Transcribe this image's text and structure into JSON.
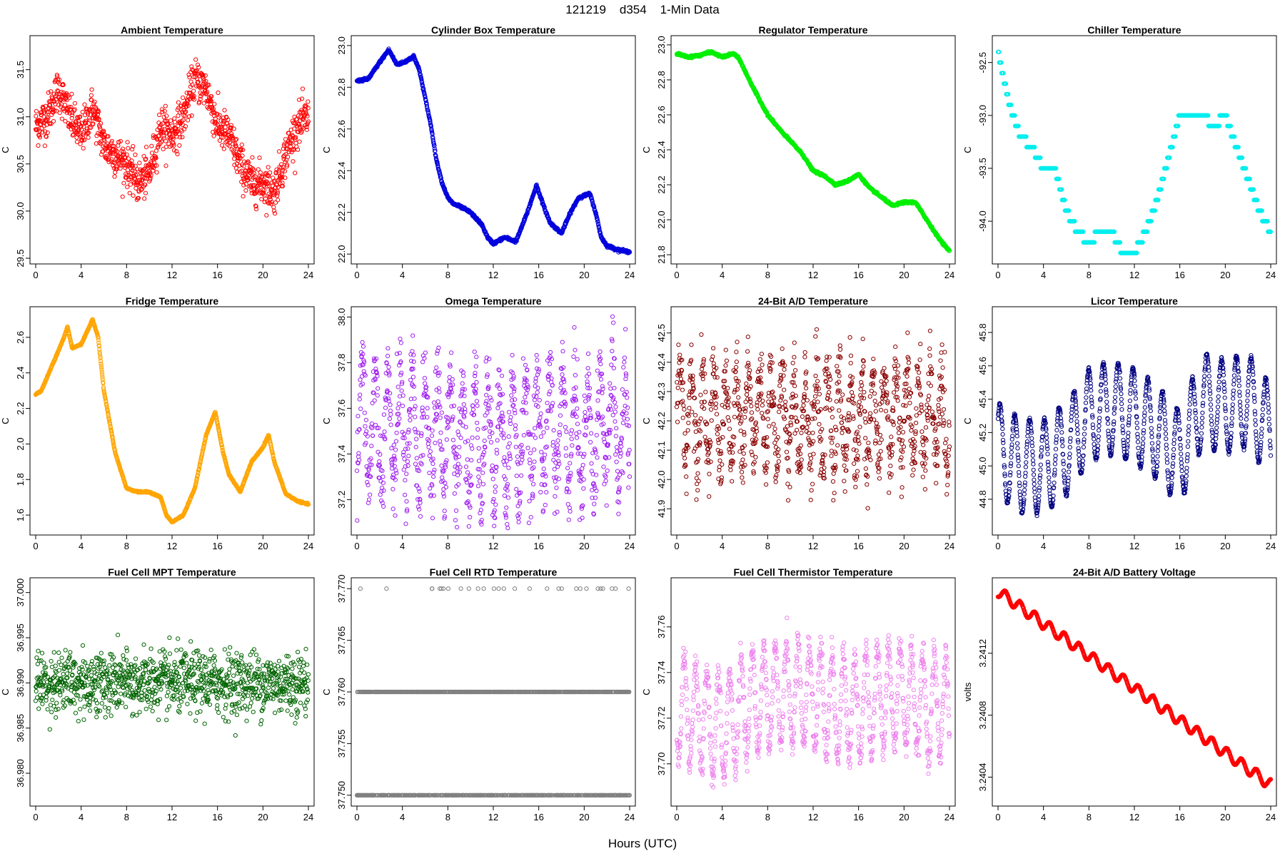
{
  "figure": {
    "suptitle": "121219    d354    1-Min Data",
    "xlabel": "Hours (UTC)"
  },
  "chart_data": [
    {
      "type": "scatter",
      "title": "Ambient Temperature",
      "ylabel": "C",
      "color": "#ff0000",
      "xlim": [
        0,
        24
      ],
      "ylim": [
        29.5,
        31.8
      ],
      "xticks": [
        0,
        4,
        8,
        12,
        16,
        20,
        24
      ],
      "xtick_labels": [
        "0",
        "4",
        "8",
        "12",
        "16",
        "20",
        "24"
      ],
      "yticks": [
        29.5,
        30.0,
        30.5,
        31.0,
        31.5
      ],
      "ytick_labels": [
        "29.5",
        "30.0",
        "30.5",
        "31.0",
        "31.5"
      ],
      "x": [
        0,
        1,
        2,
        3,
        4,
        5,
        6,
        7,
        8,
        9,
        10,
        11,
        12,
        13,
        14,
        15,
        16,
        17,
        18,
        19,
        20,
        21,
        22,
        23,
        24
      ],
      "y": [
        30.9,
        31.0,
        31.3,
        31.0,
        30.8,
        31.1,
        30.7,
        30.6,
        30.5,
        30.3,
        30.4,
        30.9,
        30.8,
        31.0,
        31.4,
        31.3,
        30.9,
        30.8,
        30.5,
        30.3,
        30.3,
        30.2,
        30.6,
        30.9,
        31.0
      ],
      "spread": 0.22
    },
    {
      "type": "scatter",
      "title": "Cylinder Box Temperature",
      "ylabel": "C",
      "color": "#0000dd",
      "xlim": [
        0,
        24
      ],
      "ylim": [
        21.98,
        23.02
      ],
      "xticks": [
        0,
        4,
        8,
        12,
        16,
        20,
        24
      ],
      "xtick_labels": [
        "0",
        "4",
        "8",
        "12",
        "16",
        "20",
        "24"
      ],
      "yticks": [
        22.0,
        22.2,
        22.4,
        22.6,
        22.8,
        23.0
      ],
      "ytick_labels": [
        "22.0",
        "22.2",
        "22.4",
        "22.6",
        "22.8",
        "23.0"
      ],
      "x": [
        0,
        1,
        2,
        2.8,
        3.5,
        4.2,
        5,
        5.5,
        6,
        6.5,
        7,
        7.5,
        8,
        8.5,
        9,
        10,
        11,
        11.5,
        12,
        13,
        14,
        15,
        15.8,
        16.5,
        17,
        18,
        18.8,
        19.5,
        20.5,
        21,
        21.5,
        22,
        23,
        24
      ],
      "y": [
        22.83,
        22.84,
        22.92,
        22.98,
        22.91,
        22.92,
        22.95,
        22.88,
        22.75,
        22.62,
        22.45,
        22.34,
        22.27,
        22.24,
        22.23,
        22.2,
        22.14,
        22.08,
        22.05,
        22.08,
        22.06,
        22.2,
        22.33,
        22.22,
        22.15,
        22.1,
        22.2,
        22.27,
        22.29,
        22.2,
        22.08,
        22.04,
        22.02,
        22.01
      ],
      "spread": 0.006
    },
    {
      "type": "scatter",
      "title": "Regulator Temperature",
      "ylabel": "C",
      "color": "#00ee00",
      "xlim": [
        0,
        24
      ],
      "ylim": [
        21.78,
        23.02
      ],
      "xticks": [
        0,
        4,
        8,
        12,
        16,
        20,
        24
      ],
      "xtick_labels": [
        "0",
        "4",
        "8",
        "12",
        "16",
        "20",
        "24"
      ],
      "yticks": [
        21.8,
        22.0,
        22.2,
        22.4,
        22.6,
        22.8,
        23.0
      ],
      "ytick_labels": [
        "21.8",
        "22.0",
        "22.2",
        "22.4",
        "22.6",
        "22.8",
        "23.0"
      ],
      "x": [
        0,
        1,
        2,
        3,
        4,
        5,
        5.5,
        6,
        7,
        8,
        9,
        10,
        11,
        12,
        13,
        14,
        15,
        16,
        17,
        18,
        19,
        20,
        21,
        22,
        23,
        24
      ],
      "y": [
        22.95,
        22.93,
        22.94,
        22.96,
        22.93,
        22.95,
        22.92,
        22.85,
        22.72,
        22.6,
        22.52,
        22.45,
        22.38,
        22.28,
        22.25,
        22.2,
        22.22,
        22.26,
        22.18,
        22.13,
        22.08,
        22.1,
        22.1,
        22.0,
        21.9,
        21.82
      ],
      "spread": 0.006
    },
    {
      "type": "scatter",
      "title": "Chiller Temperature",
      "ylabel": "C",
      "color": "#00eeee",
      "xlim": [
        0,
        24
      ],
      "ylim": [
        -94.35,
        -92.3
      ],
      "xticks": [
        0,
        4,
        8,
        12,
        16,
        20,
        24
      ],
      "xtick_labels": [
        "0",
        "4",
        "8",
        "12",
        "16",
        "20",
        "24"
      ],
      "yticks": [
        -94.0,
        -93.5,
        -93.0,
        -92.5
      ],
      "ytick_labels": [
        "-94.0",
        "-93.5",
        "-93.0",
        "-92.5"
      ],
      "x": [
        0,
        1,
        2,
        3,
        4,
        5,
        6,
        7,
        8,
        9,
        10,
        11,
        12,
        13,
        14,
        15,
        16,
        17,
        18,
        19,
        20,
        21,
        22,
        23,
        24
      ],
      "y": [
        -92.4,
        -92.9,
        -93.2,
        -93.3,
        -93.5,
        -93.5,
        -93.9,
        -94.1,
        -94.2,
        -94.1,
        -94.1,
        -94.3,
        -94.3,
        -94.1,
        -93.8,
        -93.4,
        -93.0,
        -92.95,
        -93.0,
        -93.1,
        -93.0,
        -93.3,
        -93.6,
        -93.9,
        -94.1
      ],
      "spread": 0,
      "step": 0.1
    },
    {
      "type": "scatter",
      "title": "Fridge Temperature",
      "ylabel": "C",
      "color": "#ffa500",
      "xlim": [
        0,
        24
      ],
      "ylim": [
        1.52,
        2.74
      ],
      "xticks": [
        0,
        4,
        8,
        12,
        16,
        20,
        24
      ],
      "xtick_labels": [
        "0",
        "4",
        "8",
        "12",
        "16",
        "20",
        "24"
      ],
      "yticks": [
        1.6,
        1.8,
        2.0,
        2.2,
        2.4,
        2.6
      ],
      "ytick_labels": [
        "1.6",
        "1.8",
        "2.0",
        "2.2",
        "2.4",
        "2.6"
      ],
      "x": [
        0,
        0.5,
        1.5,
        2.5,
        2.8,
        3.2,
        4,
        5,
        5.5,
        6,
        7,
        8,
        9,
        10,
        11,
        11.5,
        12,
        13,
        14,
        15,
        15.8,
        16.5,
        17,
        18,
        19,
        20,
        20.5,
        21,
        22,
        23,
        24
      ],
      "y": [
        2.28,
        2.3,
        2.45,
        2.6,
        2.66,
        2.54,
        2.56,
        2.7,
        2.6,
        2.3,
        1.95,
        1.75,
        1.73,
        1.73,
        1.7,
        1.6,
        1.56,
        1.6,
        1.75,
        2.05,
        2.18,
        1.95,
        1.83,
        1.73,
        1.9,
        1.98,
        2.05,
        1.9,
        1.72,
        1.68,
        1.66
      ],
      "spread": 0.004
    },
    {
      "type": "scatter",
      "title": "Omega Temperature",
      "ylabel": "C",
      "color": "#a020f0",
      "xlim": [
        0,
        24
      ],
      "ylim": [
        37.07,
        38.02
      ],
      "xticks": [
        0,
        4,
        8,
        12,
        16,
        20,
        24
      ],
      "xtick_labels": [
        "0",
        "4",
        "8",
        "12",
        "16",
        "20",
        "24"
      ],
      "yticks": [
        37.2,
        37.4,
        37.6,
        37.8,
        38.0
      ],
      "ytick_labels": [
        "37.2",
        "37.4",
        "37.6",
        "37.8",
        "38.0"
      ],
      "x": [
        0,
        2,
        4,
        6,
        8,
        10,
        12,
        14,
        16,
        18,
        20,
        22,
        24
      ],
      "y": [
        37.55,
        37.5,
        37.5,
        37.48,
        37.5,
        37.45,
        37.47,
        37.45,
        37.5,
        37.5,
        37.45,
        37.55,
        37.45
      ],
      "spread": 0.28,
      "osc_amp": 0.25,
      "osc_period": 1.1
    },
    {
      "type": "scatter",
      "title": "24-Bit A/D Temperature",
      "ylabel": "C",
      "color": "#8b0000",
      "xlim": [
        0,
        24
      ],
      "ylim": [
        41.83,
        42.57
      ],
      "xticks": [
        0,
        4,
        8,
        12,
        16,
        20,
        24
      ],
      "xtick_labels": [
        "0",
        "4",
        "8",
        "12",
        "16",
        "20",
        "24"
      ],
      "yticks": [
        41.9,
        42.0,
        42.1,
        42.2,
        42.3,
        42.4,
        42.5
      ],
      "ytick_labels": [
        "41.9",
        "42.0",
        "42.1",
        "42.2",
        "42.3",
        "42.4",
        "42.5"
      ],
      "x": [
        0,
        4,
        8,
        12,
        16,
        20,
        24
      ],
      "y": [
        42.25,
        42.2,
        42.22,
        42.2,
        42.2,
        42.22,
        42.2
      ],
      "spread": 0.18,
      "osc_amp": 0.15,
      "osc_period": 1.0
    },
    {
      "type": "scatter",
      "title": "Licor Temperature",
      "ylabel": "C",
      "color": "#000080",
      "xlim": [
        0,
        24
      ],
      "ylim": [
        44.62,
        45.92
      ],
      "xticks": [
        0,
        4,
        8,
        12,
        16,
        20,
        24
      ],
      "xtick_labels": [
        "0",
        "4",
        "8",
        "12",
        "16",
        "20",
        "24"
      ],
      "yticks": [
        44.8,
        45.0,
        45.2,
        45.4,
        45.6,
        45.8
      ],
      "ytick_labels": [
        "44.8",
        "45.0",
        "45.2",
        "45.4",
        "45.6",
        "45.8"
      ],
      "x": [
        0,
        2,
        4,
        6,
        8,
        10,
        12,
        14,
        16,
        18,
        20,
        22,
        24
      ],
      "y": [
        45.1,
        45.0,
        45.0,
        45.1,
        45.3,
        45.35,
        45.3,
        45.2,
        45.05,
        45.4,
        45.35,
        45.4,
        45.2
      ],
      "spread": 0.02,
      "osc_amp": 0.28,
      "osc_period": 1.3
    },
    {
      "type": "scatter",
      "title": "Fuel Cell MPT Temperature",
      "ylabel": "C",
      "color": "#006400",
      "xlim": [
        0,
        24
      ],
      "ylim": [
        36.977,
        37.001
      ],
      "xticks": [
        0,
        4,
        8,
        12,
        16,
        20,
        24
      ],
      "xtick_labels": [
        "0",
        "4",
        "8",
        "12",
        "16",
        "20",
        "24"
      ],
      "yticks": [
        36.98,
        36.985,
        36.99,
        36.995,
        37.0
      ],
      "ytick_labels": [
        "36.980",
        "36.985",
        "36.990",
        "36.995",
        "37.000"
      ],
      "x": [
        0,
        4,
        8,
        12,
        16,
        20,
        24
      ],
      "y": [
        36.99,
        36.99,
        36.99,
        36.99,
        36.99,
        36.99,
        36.99
      ],
      "spread": 0.0035
    },
    {
      "type": "scatter",
      "title": "Fuel Cell RTD Temperature",
      "ylabel": "C",
      "color": "#808080",
      "xlim": [
        0,
        24
      ],
      "ylim": [
        37.7495,
        37.7705
      ],
      "xticks": [
        0,
        4,
        8,
        12,
        16,
        20,
        24
      ],
      "xtick_labels": [
        "0",
        "4",
        "8",
        "12",
        "16",
        "20",
        "24"
      ],
      "yticks": [
        37.75,
        37.755,
        37.76,
        37.765,
        37.77
      ],
      "ytick_labels": [
        "37.750",
        "37.755",
        "37.760",
        "37.765",
        "37.770"
      ],
      "levels": [
        37.75,
        37.76,
        37.77
      ],
      "level_weights": [
        0.45,
        0.53,
        0.02
      ]
    },
    {
      "type": "scatter",
      "title": "Fuel Cell Thermistor Temperature",
      "ylabel": "C",
      "color": "#ee82ee",
      "xlim": [
        0,
        24
      ],
      "ylim": [
        37.684,
        37.779
      ],
      "xticks": [
        0,
        4,
        8,
        12,
        16,
        20,
        24
      ],
      "xtick_labels": [
        "0",
        "4",
        "8",
        "12",
        "16",
        "20",
        "24"
      ],
      "yticks": [
        37.7,
        37.72,
        37.74,
        37.76
      ],
      "ytick_labels": [
        "37.70",
        "37.72",
        "37.74",
        "37.76"
      ],
      "x": [
        0,
        2,
        4,
        6,
        8,
        10,
        12,
        14,
        16,
        18,
        20,
        22,
        24
      ],
      "y": [
        37.725,
        37.72,
        37.715,
        37.725,
        37.73,
        37.73,
        37.73,
        37.725,
        37.725,
        37.73,
        37.73,
        37.725,
        37.725
      ],
      "spread": 0.01,
      "osc_amp": 0.022,
      "osc_period": 1.0
    },
    {
      "type": "scatter",
      "title": "24-Bit A/D Battery Voltage",
      "ylabel": "volts",
      "color": "#ff0000",
      "xlim": [
        0,
        24
      ],
      "ylim": [
        3.24025,
        3.24165
      ],
      "xticks": [
        0,
        4,
        8,
        12,
        16,
        20,
        24
      ],
      "xtick_labels": [
        "0",
        "4",
        "8",
        "12",
        "16",
        "20",
        "24"
      ],
      "yticks": [
        3.2404,
        3.2408,
        3.2412
      ],
      "ytick_labels": [
        "3.2404",
        "3.2408",
        "3.2412"
      ],
      "x": [
        0,
        24
      ],
      "y": [
        3.2416,
        3.24035
      ],
      "spread": 4e-06,
      "osc_amp": 3.5e-05,
      "osc_period": 1.3,
      "dense": true
    }
  ]
}
